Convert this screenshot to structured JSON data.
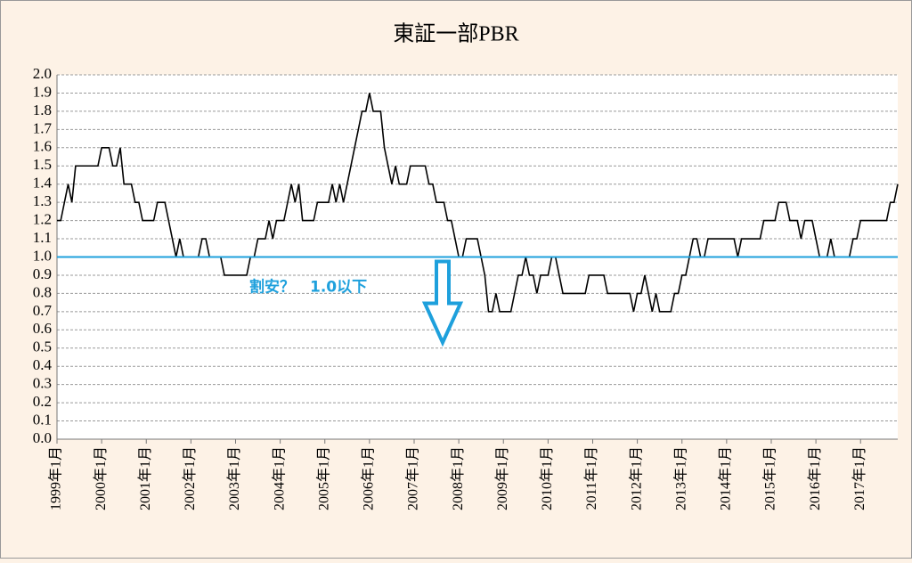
{
  "chart_data": {
    "type": "line",
    "title": "東証一部PBR",
    "categories": [
      "1999年1月",
      null,
      null,
      null,
      null,
      null,
      null,
      null,
      null,
      null,
      null,
      null,
      "2000年1月",
      null,
      null,
      null,
      null,
      null,
      null,
      null,
      null,
      null,
      null,
      null,
      "2001年1月",
      null,
      null,
      null,
      null,
      null,
      null,
      null,
      null,
      null,
      null,
      null,
      "2002年1月",
      null,
      null,
      null,
      null,
      null,
      null,
      null,
      null,
      null,
      null,
      null,
      "2003年1月",
      null,
      null,
      null,
      null,
      null,
      null,
      null,
      null,
      null,
      null,
      null,
      "2004年1月",
      null,
      null,
      null,
      null,
      null,
      null,
      null,
      null,
      null,
      null,
      null,
      "2005年1月",
      null,
      null,
      null,
      null,
      null,
      null,
      null,
      null,
      null,
      null,
      null,
      "2006年1月",
      null,
      null,
      null,
      null,
      null,
      null,
      null,
      null,
      null,
      null,
      null,
      "2007年1月",
      null,
      null,
      null,
      null,
      null,
      null,
      null,
      null,
      null,
      null,
      null,
      "2008年1月",
      null,
      null,
      null,
      null,
      null,
      null,
      null,
      null,
      null,
      null,
      null,
      "2009年1月",
      null,
      null,
      null,
      null,
      null,
      null,
      null,
      null,
      null,
      null,
      null,
      "2010年1月",
      null,
      null,
      null,
      null,
      null,
      null,
      null,
      null,
      null,
      null,
      null,
      "2011年1月",
      null,
      null,
      null,
      null,
      null,
      null,
      null,
      null,
      null,
      null,
      null,
      "2012年1月",
      null,
      null,
      null,
      null,
      null,
      null,
      null,
      null,
      null,
      null,
      null,
      "2013年1月",
      null,
      null,
      null,
      null,
      null,
      null,
      null,
      null,
      null,
      null,
      null,
      "2014年1月",
      null,
      null,
      null,
      null,
      null,
      null,
      null,
      null,
      null,
      null,
      null,
      "2015年1月",
      null,
      null,
      null,
      null,
      null,
      null,
      null,
      null,
      null,
      null,
      null,
      "2016年1月",
      null,
      null,
      null,
      null,
      null,
      null,
      null,
      null,
      null,
      null,
      null,
      "2017年1月",
      null,
      null,
      null,
      null,
      null,
      null,
      null,
      null,
      null,
      null
    ],
    "series": [
      {
        "color": "#000000",
        "values": [
          1.2,
          1.2,
          1.3,
          1.4,
          1.3,
          1.5,
          1.5,
          1.5,
          1.5,
          1.5,
          1.5,
          1.5,
          1.6,
          1.6,
          1.6,
          1.5,
          1.5,
          1.6,
          1.4,
          1.4,
          1.4,
          1.3,
          1.3,
          1.2,
          1.2,
          1.2,
          1.2,
          1.3,
          1.3,
          1.3,
          1.2,
          1.1,
          1.0,
          1.1,
          1.0,
          1.0,
          1.0,
          1.0,
          1.0,
          1.1,
          1.1,
          1.0,
          1.0,
          1.0,
          1.0,
          0.9,
          0.9,
          0.9,
          0.9,
          0.9,
          0.9,
          0.9,
          1.0,
          1.0,
          1.1,
          1.1,
          1.1,
          1.2,
          1.1,
          1.2,
          1.2,
          1.2,
          1.3,
          1.4,
          1.3,
          1.4,
          1.2,
          1.2,
          1.2,
          1.2,
          1.3,
          1.3,
          1.3,
          1.3,
          1.4,
          1.3,
          1.4,
          1.3,
          1.4,
          1.5,
          1.6,
          1.7,
          1.8,
          1.8,
          1.9,
          1.8,
          1.8,
          1.8,
          1.6,
          1.5,
          1.4,
          1.5,
          1.4,
          1.4,
          1.4,
          1.5,
          1.5,
          1.5,
          1.5,
          1.5,
          1.4,
          1.4,
          1.3,
          1.3,
          1.3,
          1.2,
          1.2,
          1.1,
          1.0,
          1.0,
          1.1,
          1.1,
          1.1,
          1.1,
          1.0,
          0.9,
          0.7,
          0.7,
          0.8,
          0.7,
          0.7,
          0.7,
          0.7,
          0.8,
          0.9,
          0.9,
          1.0,
          0.9,
          0.9,
          0.8,
          0.9,
          0.9,
          0.9,
          1.0,
          1.0,
          0.9,
          0.8,
          0.8,
          0.8,
          0.8,
          0.8,
          0.8,
          0.8,
          0.9,
          0.9,
          0.9,
          0.9,
          0.9,
          0.8,
          0.8,
          0.8,
          0.8,
          0.8,
          0.8,
          0.8,
          0.7,
          0.8,
          0.8,
          0.9,
          0.8,
          0.7,
          0.8,
          0.7,
          0.7,
          0.7,
          0.7,
          0.8,
          0.8,
          0.9,
          0.9,
          1.0,
          1.1,
          1.1,
          1.0,
          1.0,
          1.1,
          1.1,
          1.1,
          1.1,
          1.1,
          1.1,
          1.1,
          1.1,
          1.0,
          1.1,
          1.1,
          1.1,
          1.1,
          1.1,
          1.1,
          1.2,
          1.2,
          1.2,
          1.2,
          1.3,
          1.3,
          1.3,
          1.2,
          1.2,
          1.2,
          1.1,
          1.2,
          1.2,
          1.2,
          1.1,
          1.0,
          1.0,
          1.0,
          1.1,
          1.0,
          1.0,
          1.0,
          1.0,
          1.0,
          1.1,
          1.1,
          1.2,
          1.2,
          1.2,
          1.2,
          1.2,
          1.2,
          1.2,
          1.2,
          1.3,
          1.3,
          1.4
        ]
      }
    ],
    "ylim": [
      0,
      2
    ],
    "yticks": [
      {
        "value": 0,
        "label": "0.0"
      },
      0.1,
      0.2,
      0.3,
      0.4,
      0.5,
      0.6,
      0.7,
      0.8,
      0.9,
      {
        "value": 1,
        "label": "1.0"
      },
      1.1,
      1.2,
      1.3,
      1.4,
      1.5,
      1.6,
      1.7,
      1.8,
      1.9,
      {
        "value": 2,
        "label": "2.0"
      }
    ],
    "grid": true,
    "reference_line": {
      "value": 1,
      "color": "#1ea0dc"
    },
    "annotation": "割安？　1.0以下"
  }
}
